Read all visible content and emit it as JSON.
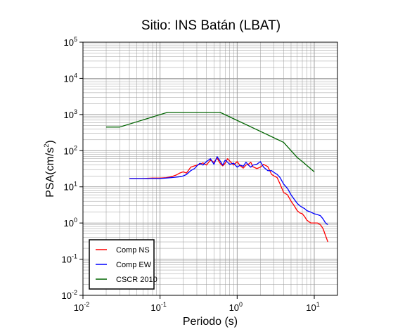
{
  "chart_data": {
    "type": "line",
    "title": "Sitio: INS Batán (LBAT)",
    "xlabel": "Periodo (s)",
    "ylabel_main": "PSA(cm/s",
    "ylabel_sup": "2",
    "ylabel_close": ")",
    "xscale": "log",
    "yscale": "log",
    "xlim": [
      0.01,
      20
    ],
    "ylim": [
      0.01,
      100000
    ],
    "grid": true,
    "legend_position": "bottom-left",
    "x_ticks": [
      {
        "value": 0.01,
        "base": "10",
        "exp": "-2"
      },
      {
        "value": 0.1,
        "base": "10",
        "exp": "-1"
      },
      {
        "value": 1,
        "base": "10",
        "exp": "0"
      },
      {
        "value": 10,
        "base": "10",
        "exp": "1"
      }
    ],
    "y_ticks": [
      {
        "value": 0.01,
        "base": "10",
        "exp": "-2"
      },
      {
        "value": 0.1,
        "base": "10",
        "exp": "-1"
      },
      {
        "value": 1,
        "base": "10",
        "exp": "0"
      },
      {
        "value": 10,
        "base": "10",
        "exp": "1"
      },
      {
        "value": 100,
        "base": "10",
        "exp": "2"
      },
      {
        "value": 1000,
        "base": "10",
        "exp": "3"
      },
      {
        "value": 10000,
        "base": "10",
        "exp": "4"
      },
      {
        "value": 100000,
        "base": "10",
        "exp": "5"
      }
    ],
    "series": [
      {
        "name": "Comp NS",
        "color": "#ff0000",
        "x": [
          0.04,
          0.06,
          0.08,
          0.1,
          0.12,
          0.14,
          0.16,
          0.18,
          0.2,
          0.22,
          0.25,
          0.28,
          0.3,
          0.33,
          0.36,
          0.4,
          0.45,
          0.5,
          0.55,
          0.6,
          0.65,
          0.7,
          0.75,
          0.8,
          0.9,
          1.0,
          1.1,
          1.2,
          1.3,
          1.4,
          1.5,
          1.6,
          1.8,
          2.0,
          2.2,
          2.5,
          2.8,
          3.0,
          3.3,
          3.6,
          4.0,
          4.5,
          5.0,
          5.5,
          6.0,
          6.5,
          7.0,
          7.5,
          8.0,
          9.0,
          10.0,
          11.0,
          12.0,
          13.0,
          14.0,
          15.0
        ],
        "y": [
          17,
          17,
          17.5,
          17.5,
          18,
          19,
          21,
          24,
          26,
          24,
          35,
          38,
          40,
          42,
          46,
          40,
          55,
          48,
          62,
          45,
          38,
          45,
          60,
          52,
          40,
          50,
          38,
          33,
          40,
          42,
          48,
          36,
          32,
          35,
          42,
          36,
          22,
          20,
          18,
          12,
          7,
          6,
          4,
          3,
          2.2,
          1.9,
          1.8,
          1.5,
          1.2,
          1.0,
          1.0,
          1.0,
          0.9,
          0.7,
          0.45,
          0.3
        ]
      },
      {
        "name": "Comp EW",
        "color": "#0000ff",
        "x": [
          0.04,
          0.06,
          0.08,
          0.1,
          0.12,
          0.14,
          0.16,
          0.18,
          0.2,
          0.22,
          0.25,
          0.28,
          0.3,
          0.33,
          0.36,
          0.4,
          0.45,
          0.5,
          0.55,
          0.6,
          0.65,
          0.7,
          0.75,
          0.8,
          0.9,
          1.0,
          1.1,
          1.2,
          1.3,
          1.4,
          1.5,
          1.6,
          1.8,
          2.0,
          2.2,
          2.5,
          2.8,
          3.0,
          3.3,
          3.6,
          4.0,
          4.5,
          5.0,
          5.5,
          6.0,
          6.5,
          7.0,
          7.5,
          8.0,
          9.0,
          10.0,
          11.0,
          12.0,
          13.0,
          14.0,
          15.0
        ],
        "y": [
          17,
          17,
          17,
          17,
          17.5,
          18,
          18.5,
          19,
          20,
          22,
          28,
          32,
          38,
          45,
          40,
          50,
          60,
          42,
          68,
          52,
          40,
          55,
          48,
          42,
          45,
          35,
          40,
          37,
          48,
          40,
          35,
          40,
          42,
          50,
          35,
          28,
          28,
          25,
          22,
          18,
          12,
          9,
          6,
          4.5,
          3.5,
          3.0,
          2.7,
          2.5,
          2.2,
          2.0,
          1.8,
          1.7,
          1.6,
          1.3,
          1.0,
          0.9
        ]
      },
      {
        "name": "CSCR 2010",
        "color": "#006400",
        "x": [
          0.02,
          0.03,
          0.125,
          0.6,
          4.0,
          6.0,
          7.0,
          10.0
        ],
        "y": [
          450,
          450,
          1150,
          1150,
          170,
          65,
          50,
          26
        ]
      }
    ]
  }
}
